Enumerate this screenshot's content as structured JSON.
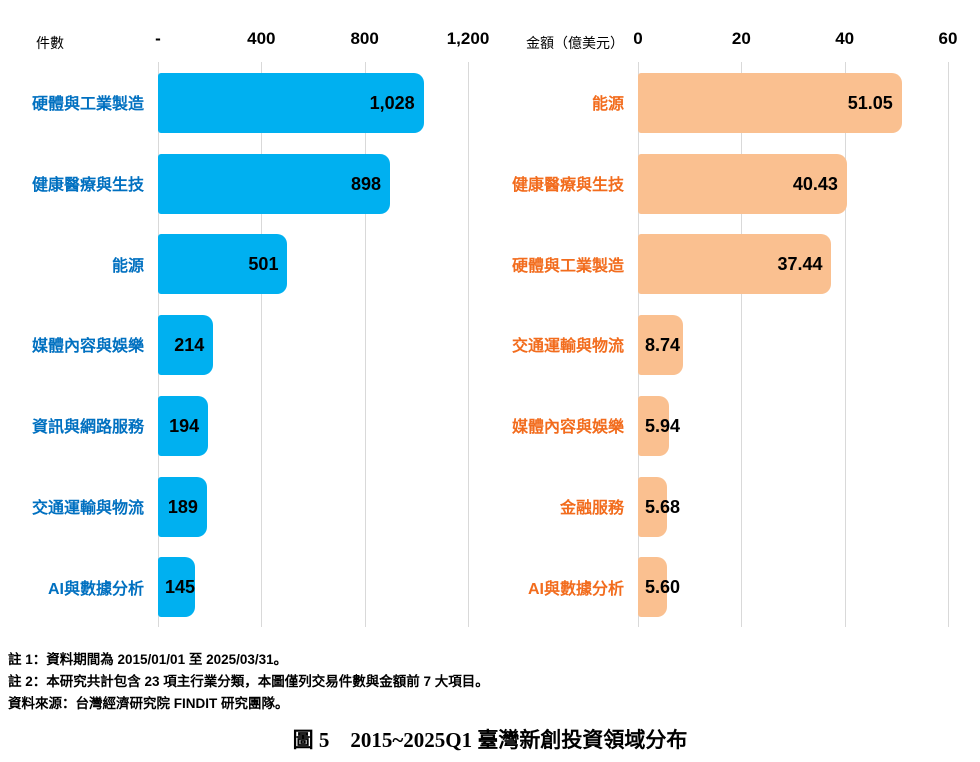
{
  "chart_data": [
    {
      "type": "bar",
      "orientation": "horizontal",
      "unit_label": "件數",
      "categories": [
        "硬體與工業製造",
        "健康醫療與生技",
        "能源",
        "媒體內容與娛樂",
        "資訊與網路服務",
        "交通運輸與物流",
        "AI與數據分析"
      ],
      "values": [
        1028,
        898,
        501,
        214,
        194,
        189,
        145
      ],
      "value_labels": [
        "1,028",
        "898",
        "501",
        "214",
        "194",
        "189",
        "145"
      ],
      "xlim": [
        0,
        1200
      ],
      "ticks": [
        {
          "value": 0,
          "label": "-"
        },
        {
          "value": 400,
          "label": "400"
        },
        {
          "value": 800,
          "label": "800"
        },
        {
          "value": 1200,
          "label": "1,200"
        }
      ],
      "grid": true,
      "legend": "none",
      "bar_color": "#00B0F0",
      "category_label_color": "#0070C0",
      "value_label_color": "#000000",
      "gridline_color": "#D9D9D9"
    },
    {
      "type": "bar",
      "orientation": "horizontal",
      "unit_label": "金額（億美元）",
      "categories": [
        "能源",
        "健康醫療與生技",
        "硬體與工業製造",
        "交通運輸與物流",
        "媒體內容與娛樂",
        "金融服務",
        "AI與數據分析"
      ],
      "values": [
        51.05,
        40.43,
        37.44,
        8.74,
        5.94,
        5.68,
        5.6
      ],
      "value_labels": [
        "51.05",
        "40.43",
        "37.44",
        "8.74",
        "5.94",
        "5.68",
        "5.60"
      ],
      "xlim": [
        0,
        60
      ],
      "ticks": [
        {
          "value": 0,
          "label": "0"
        },
        {
          "value": 20,
          "label": "20"
        },
        {
          "value": 40,
          "label": "40"
        },
        {
          "value": 60,
          "label": "60"
        }
      ],
      "grid": true,
      "legend": "none",
      "bar_color": "#FAC090",
      "category_label_color": "#F26C1D",
      "value_label_color": "#000000",
      "gridline_color": "#D9D9D9"
    }
  ],
  "notes": [
    "註 1：資料期間為 2015/01/01 至 2025/03/31。",
    "註 2：本研究共計包含 23 項主行業分類，本圖僅列交易件數與金額前 7 大項目。",
    "資料來源：台灣經濟研究院 FINDIT 研究團隊。"
  ],
  "caption": "圖 5　2015~2025Q1 臺灣新創投資領域分布"
}
